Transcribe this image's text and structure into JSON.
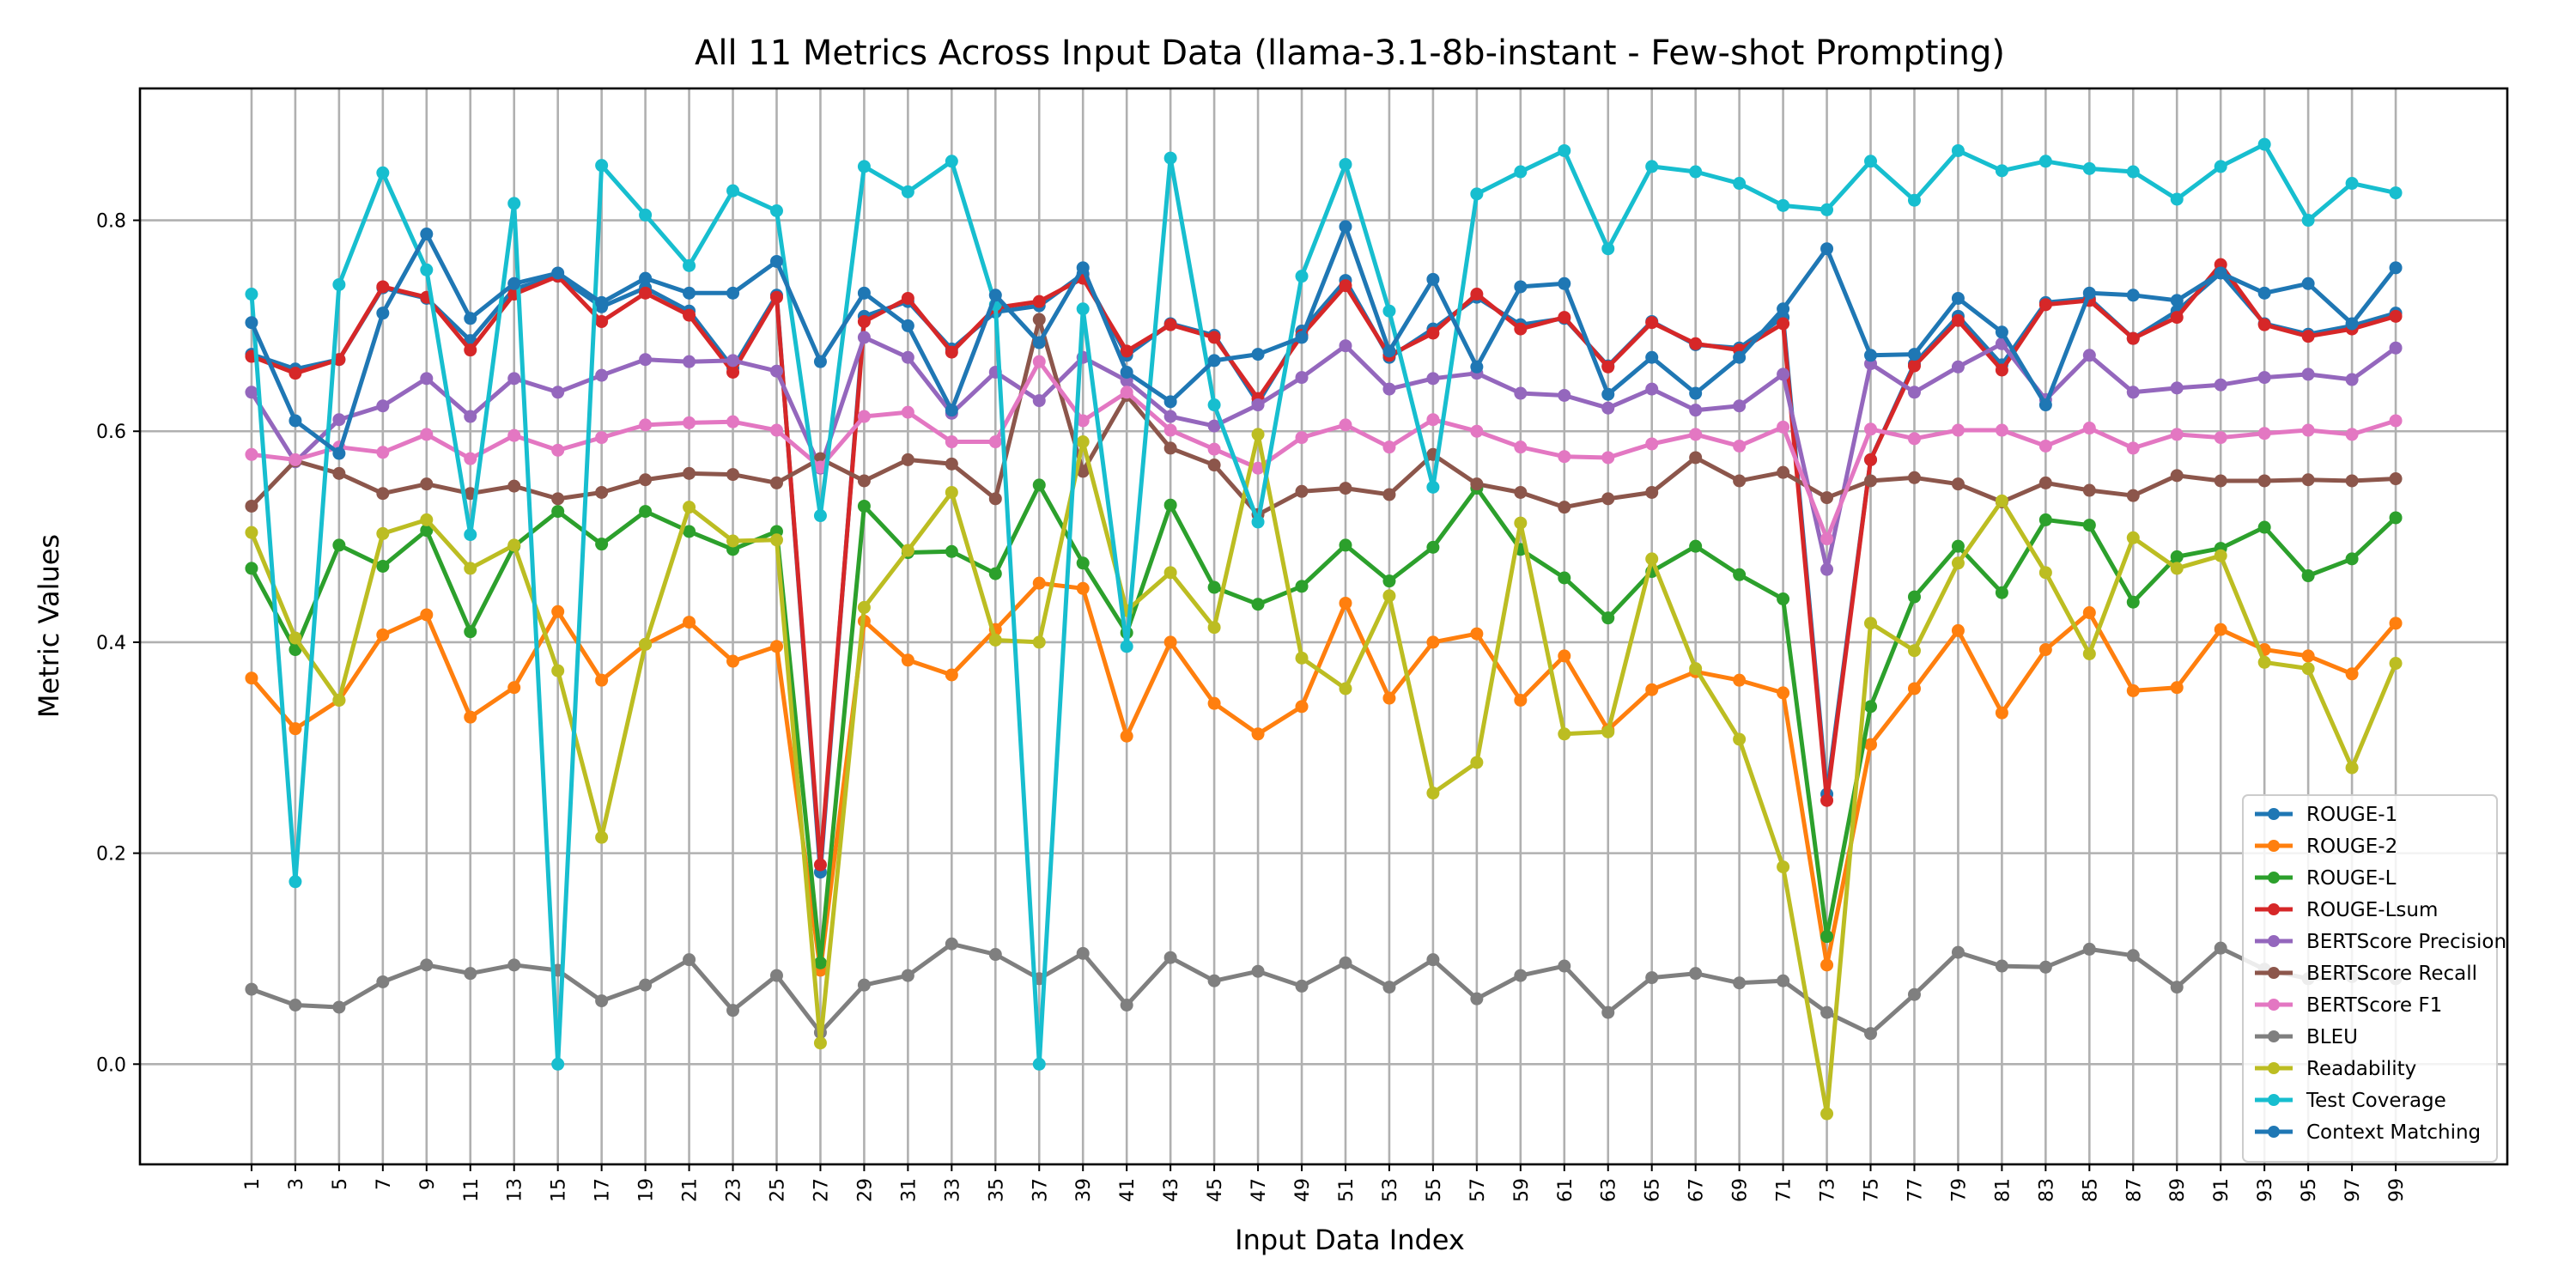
{
  "chart_data": {
    "type": "line",
    "title": "All 11 Metrics Across Input Data (llama-3.1-8b-instant - Few-shot Prompting)",
    "xlabel": "Input Data Index",
    "ylabel": "Metric Values",
    "x": [
      1,
      3,
      5,
      7,
      9,
      11,
      13,
      15,
      17,
      19,
      21,
      23,
      25,
      27,
      29,
      31,
      33,
      35,
      37,
      39,
      41,
      43,
      45,
      47,
      49,
      51,
      53,
      55,
      57,
      59,
      61,
      63,
      65,
      67,
      69,
      71,
      73,
      75,
      77,
      79,
      81,
      83,
      85,
      87,
      89,
      91,
      93,
      95,
      97,
      99
    ],
    "ylim": [
      -0.095,
      0.925
    ],
    "y_ticks": [
      0.0,
      0.2,
      0.4,
      0.6,
      0.8
    ],
    "y_tick_labels": [
      "0.0",
      "0.2",
      "0.4",
      "0.6",
      "0.8"
    ],
    "grid": true,
    "legend_position": "lower-right",
    "series": [
      {
        "name": "ROUGE-1",
        "color": "#1f77b4",
        "values": [
          0.673,
          0.659,
          0.668,
          0.736,
          0.726,
          0.686,
          0.735,
          0.747,
          0.718,
          0.736,
          0.714,
          0.66,
          0.729,
          0.182,
          0.709,
          0.723,
          0.678,
          0.713,
          0.719,
          0.749,
          0.672,
          0.702,
          0.691,
          0.627,
          0.695,
          0.743,
          0.67,
          0.697,
          0.727,
          0.701,
          0.707,
          0.662,
          0.704,
          0.682,
          0.679,
          0.708,
          0.256,
          0.573,
          0.664,
          0.709,
          0.663,
          0.722,
          0.726,
          0.688,
          0.714,
          0.75,
          0.702,
          0.692,
          0.7,
          0.712
        ]
      },
      {
        "name": "ROUGE-2",
        "color": "#ff7f0e",
        "values": [
          0.366,
          0.318,
          0.345,
          0.407,
          0.426,
          0.329,
          0.357,
          0.429,
          0.364,
          0.398,
          0.419,
          0.382,
          0.396,
          0.089,
          0.42,
          0.383,
          0.369,
          0.412,
          0.456,
          0.451,
          0.311,
          0.4,
          0.342,
          0.313,
          0.339,
          0.437,
          0.347,
          0.4,
          0.408,
          0.345,
          0.387,
          0.317,
          0.355,
          0.372,
          0.364,
          0.352,
          0.094,
          0.303,
          0.356,
          0.411,
          0.333,
          0.393,
          0.428,
          0.354,
          0.357,
          0.412,
          0.393,
          0.387,
          0.37,
          0.418
        ]
      },
      {
        "name": "ROUGE-L",
        "color": "#2ca02c",
        "values": [
          0.47,
          0.393,
          0.492,
          0.472,
          0.506,
          0.41,
          0.491,
          0.524,
          0.493,
          0.524,
          0.505,
          0.488,
          0.505,
          0.096,
          0.529,
          0.485,
          0.486,
          0.465,
          0.549,
          0.475,
          0.409,
          0.53,
          0.452,
          0.436,
          0.453,
          0.492,
          0.458,
          0.49,
          0.546,
          0.488,
          0.461,
          0.423,
          0.467,
          0.491,
          0.464,
          0.441,
          0.121,
          0.339,
          0.443,
          0.491,
          0.447,
          0.516,
          0.511,
          0.438,
          0.481,
          0.489,
          0.509,
          0.463,
          0.479,
          0.518
        ]
      },
      {
        "name": "ROUGE-Lsum",
        "color": "#d62728",
        "values": [
          0.671,
          0.655,
          0.668,
          0.737,
          0.727,
          0.677,
          0.73,
          0.747,
          0.704,
          0.731,
          0.71,
          0.656,
          0.727,
          0.189,
          0.704,
          0.726,
          0.675,
          0.717,
          0.723,
          0.745,
          0.676,
          0.701,
          0.689,
          0.631,
          0.691,
          0.738,
          0.672,
          0.693,
          0.73,
          0.697,
          0.708,
          0.661,
          0.703,
          0.683,
          0.677,
          0.702,
          0.25,
          0.573,
          0.662,
          0.705,
          0.658,
          0.72,
          0.724,
          0.688,
          0.708,
          0.758,
          0.701,
          0.69,
          0.697,
          0.709
        ]
      },
      {
        "name": "BERTScore Precision",
        "color": "#9467bd",
        "values": [
          0.637,
          0.571,
          0.611,
          0.624,
          0.65,
          0.614,
          0.65,
          0.637,
          0.653,
          0.668,
          0.666,
          0.667,
          0.657,
          0.565,
          0.689,
          0.67,
          0.617,
          0.656,
          0.629,
          0.67,
          0.648,
          0.614,
          0.605,
          0.625,
          0.651,
          0.681,
          0.64,
          0.65,
          0.655,
          0.636,
          0.634,
          0.622,
          0.64,
          0.62,
          0.624,
          0.654,
          0.469,
          0.664,
          0.637,
          0.661,
          0.683,
          0.63,
          0.672,
          0.637,
          0.641,
          0.644,
          0.651,
          0.654,
          0.649,
          0.679
        ]
      },
      {
        "name": "BERTScore Recall",
        "color": "#8c564b",
        "values": [
          0.529,
          0.572,
          0.56,
          0.541,
          0.55,
          0.541,
          0.548,
          0.536,
          0.542,
          0.554,
          0.56,
          0.559,
          0.551,
          0.574,
          0.553,
          0.573,
          0.569,
          0.536,
          0.706,
          0.562,
          0.634,
          0.584,
          0.568,
          0.521,
          0.543,
          0.546,
          0.54,
          0.578,
          0.55,
          0.542,
          0.528,
          0.536,
          0.542,
          0.575,
          0.553,
          0.561,
          0.537,
          0.553,
          0.556,
          0.55,
          0.533,
          0.551,
          0.544,
          0.539,
          0.558,
          0.553,
          0.553,
          0.554,
          0.553,
          0.555
        ]
      },
      {
        "name": "BERTScore F1",
        "color": "#e377c2",
        "values": [
          0.578,
          0.573,
          0.585,
          0.58,
          0.597,
          0.574,
          0.596,
          0.582,
          0.594,
          0.606,
          0.608,
          0.609,
          0.601,
          0.566,
          0.614,
          0.618,
          0.59,
          0.59,
          0.666,
          0.61,
          0.637,
          0.601,
          0.583,
          0.565,
          0.594,
          0.606,
          0.585,
          0.611,
          0.6,
          0.585,
          0.576,
          0.575,
          0.588,
          0.597,
          0.586,
          0.604,
          0.498,
          0.602,
          0.593,
          0.601,
          0.601,
          0.586,
          0.603,
          0.584,
          0.597,
          0.594,
          0.598,
          0.601,
          0.597,
          0.61
        ]
      },
      {
        "name": "BLEU",
        "color": "#7f7f7f",
        "values": [
          0.071,
          0.056,
          0.054,
          0.078,
          0.094,
          0.086,
          0.094,
          0.089,
          0.06,
          0.075,
          0.099,
          0.051,
          0.084,
          0.03,
          0.075,
          0.084,
          0.114,
          0.104,
          0.081,
          0.105,
          0.056,
          0.101,
          0.079,
          0.088,
          0.074,
          0.096,
          0.073,
          0.099,
          0.062,
          0.084,
          0.093,
          0.049,
          0.082,
          0.086,
          0.077,
          0.079,
          0.049,
          0.029,
          0.066,
          0.106,
          0.093,
          0.092,
          0.109,
          0.103,
          0.073,
          0.11,
          0.09,
          0.081,
          0.083,
          0.081
        ]
      },
      {
        "name": "Readability",
        "color": "#bcbd22",
        "values": [
          0.504,
          0.404,
          0.345,
          0.503,
          0.516,
          0.47,
          0.492,
          0.373,
          0.215,
          0.398,
          0.528,
          0.496,
          0.497,
          0.02,
          0.433,
          0.487,
          0.542,
          0.402,
          0.4,
          0.59,
          0.43,
          0.466,
          0.414,
          0.597,
          0.385,
          0.356,
          0.444,
          0.257,
          0.286,
          0.513,
          0.313,
          0.315,
          0.479,
          0.375,
          0.308,
          0.187,
          -0.047,
          0.418,
          0.392,
          0.475,
          0.534,
          0.466,
          0.389,
          0.499,
          0.47,
          0.482,
          0.381,
          0.375,
          0.281,
          0.38
        ]
      },
      {
        "name": "Test Coverage",
        "color": "#17becf",
        "values": [
          0.73,
          0.173,
          0.739,
          0.845,
          0.753,
          0.502,
          0.816,
          0.0,
          0.852,
          0.805,
          0.757,
          0.828,
          0.809,
          0.52,
          0.851,
          0.827,
          0.856,
          0.72,
          0.0,
          0.716,
          0.396,
          0.859,
          0.625,
          0.514,
          0.747,
          0.853,
          0.714,
          0.547,
          0.825,
          0.846,
          0.866,
          0.773,
          0.851,
          0.846,
          0.835,
          0.814,
          0.81,
          0.856,
          0.819,
          0.866,
          0.847,
          0.856,
          0.849,
          0.846,
          0.82,
          0.851,
          0.872,
          0.8,
          0.835,
          0.826
        ]
      },
      {
        "name": "Context Matching",
        "color": "#1f77b4",
        "values": [
          0.703,
          0.61,
          0.579,
          0.712,
          0.787,
          0.707,
          0.74,
          0.75,
          0.722,
          0.745,
          0.731,
          0.731,
          0.761,
          0.666,
          0.731,
          0.7,
          0.62,
          0.729,
          0.684,
          0.755,
          0.656,
          0.628,
          0.667,
          0.673,
          0.689,
          0.794,
          0.676,
          0.744,
          0.661,
          0.737,
          0.74,
          0.635,
          0.67,
          0.636,
          0.67,
          0.716,
          0.773,
          0.672,
          0.673,
          0.726,
          0.694,
          0.625,
          0.731,
          0.729,
          0.724,
          0.75,
          0.731,
          0.74,
          0.702,
          0.755
        ]
      }
    ]
  }
}
